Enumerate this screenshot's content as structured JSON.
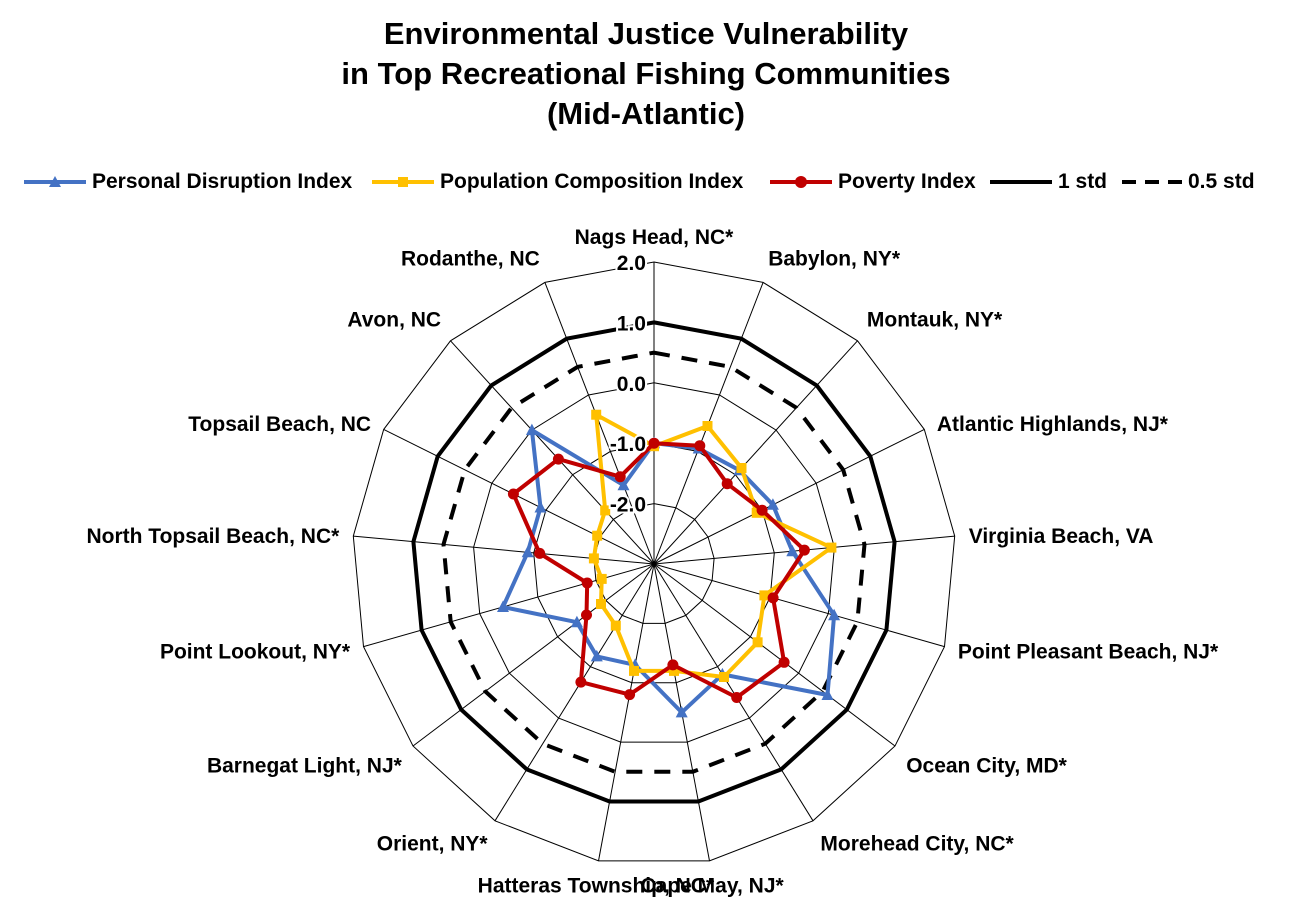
{
  "chart_data": {
    "type": "radar",
    "title_lines": [
      "Environmental Justice Vulnerability",
      "in Top Recreational Fishing Communities",
      "(Mid-Atlantic)"
    ],
    "categories": [
      "Nags Head, NC*",
      "Babylon, NY*",
      "Montauk, NY*",
      "Atlantic Highlands, NJ*",
      "Virginia Beach, VA",
      "Point Pleasant Beach, NJ*",
      "Ocean City, MD*",
      "Morehead City, NC*",
      "Cape May, NJ*",
      "Hatteras Township, NC*",
      "Orient, NY*",
      "Barnegat Light, NJ*",
      "Point Lookout, NY*",
      "North Topsail Beach, NC*",
      "Topsail Beach, NC",
      "Avon, NC",
      "Rodanthe, NC"
    ],
    "axis": {
      "min": -3,
      "max": 2,
      "ticks": [
        2.0,
        1.0,
        0.0,
        -1.0,
        -2.0
      ],
      "tick_labels": [
        "2.0",
        "1.0",
        "0.0",
        "-1.0",
        "-2.0"
      ]
    },
    "series": [
      {
        "name": "Personal Disruption Index",
        "color": "#4472C4",
        "marker": "triangle",
        "values": [
          -1.0,
          -0.95,
          -0.9,
          -0.8,
          -0.7,
          0.1,
          0.6,
          -0.85,
          -0.5,
          -1.3,
          -1.2,
          -1.4,
          -0.4,
          -0.9,
          -0.9,
          0.0,
          -1.6
        ]
      },
      {
        "name": "Population Composition Index",
        "color": "#FFC000",
        "marker": "square",
        "values": [
          -1.05,
          -0.55,
          -0.85,
          -1.1,
          -0.05,
          -1.1,
          -0.85,
          -0.8,
          -1.2,
          -1.2,
          -1.8,
          -1.9,
          -2.1,
          -2.0,
          -1.95,
          -1.8,
          -0.35
        ]
      },
      {
        "name": "Poverty Index",
        "color": "#C00000",
        "marker": "circle",
        "values": [
          -1.0,
          -0.9,
          -1.2,
          -1.0,
          -0.5,
          -0.95,
          -0.3,
          -0.4,
          -1.3,
          -0.8,
          -0.7,
          -1.6,
          -1.85,
          -1.1,
          -0.4,
          -0.65,
          -1.45
        ]
      },
      {
        "name": "1 std",
        "color": "#000000",
        "style": "solid",
        "values": [
          1,
          1,
          1,
          1,
          1,
          1,
          1,
          1,
          1,
          1,
          1,
          1,
          1,
          1,
          1,
          1,
          1
        ]
      },
      {
        "name": "0.5 std",
        "color": "#000000",
        "style": "dashed",
        "values": [
          0.5,
          0.5,
          0.5,
          0.5,
          0.5,
          0.5,
          0.5,
          0.5,
          0.5,
          0.5,
          0.5,
          0.5,
          0.5,
          0.5,
          0.5,
          0.5,
          0.5
        ]
      }
    ],
    "legend_position": "top",
    "grid": true
  }
}
